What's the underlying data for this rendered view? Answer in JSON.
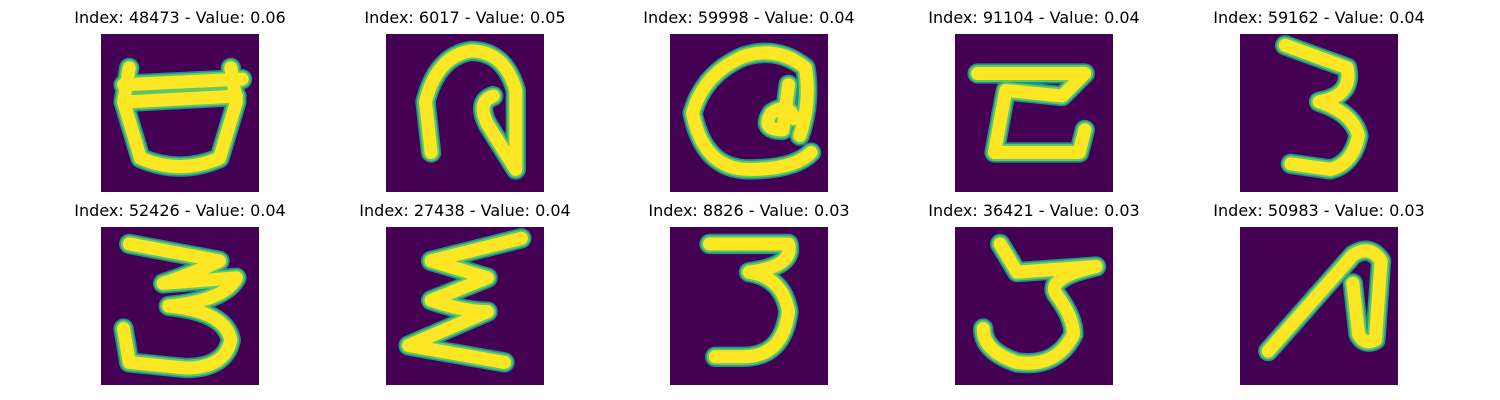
{
  "colors": {
    "background": "#440154",
    "stroke_outer": "#21918c",
    "stroke_mid": "#5ec962",
    "stroke_core": "#fde725"
  },
  "panels": [
    {
      "title": "Index: 48473 - Value: 0.06",
      "icon": "glyph-a"
    },
    {
      "title": "Index: 6017 - Value: 0.05",
      "icon": "glyph-b"
    },
    {
      "title": "Index: 59998 - Value: 0.04",
      "icon": "glyph-c"
    },
    {
      "title": "Index: 91104 - Value: 0.04",
      "icon": "glyph-d"
    },
    {
      "title": "Index: 59162 - Value: 0.04",
      "icon": "glyph-e"
    },
    {
      "title": "Index: 52426 - Value: 0.04",
      "icon": "glyph-f"
    },
    {
      "title": "Index: 27438 - Value: 0.04",
      "icon": "glyph-g"
    },
    {
      "title": "Index: 8826 - Value: 0.03",
      "icon": "glyph-h"
    },
    {
      "title": "Index: 36421 - Value: 0.03",
      "icon": "glyph-i"
    },
    {
      "title": "Index: 50983 - Value: 0.03",
      "icon": "glyph-j"
    }
  ]
}
